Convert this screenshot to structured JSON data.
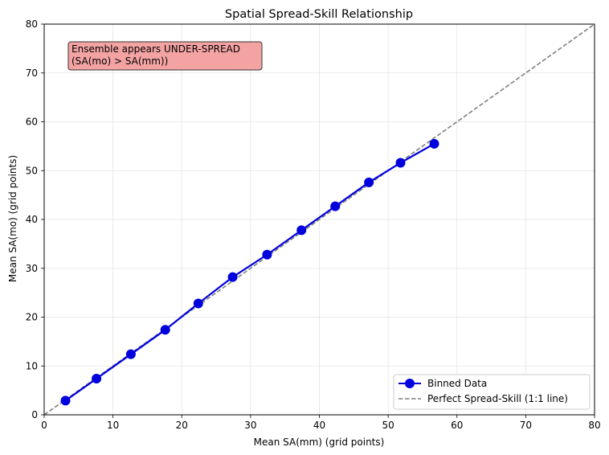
{
  "chart_data": {
    "type": "line",
    "title": "Spatial Spread-Skill Relationship",
    "xlabel": "Mean SA(mm) (grid points)",
    "ylabel": "Mean SA(mo) (grid points)",
    "xlim": [
      0,
      80
    ],
    "ylim": [
      0,
      80
    ],
    "xticks": [
      0,
      10,
      20,
      30,
      40,
      50,
      60,
      70,
      80
    ],
    "yticks": [
      0,
      10,
      20,
      30,
      40,
      50,
      60,
      70,
      80
    ],
    "grid": true,
    "legend_position": "bottom-right",
    "series": [
      {
        "name": "Binned Data",
        "color": "#0000dd",
        "marker": "circle",
        "x": [
          3.1,
          7.6,
          12.6,
          17.6,
          22.4,
          27.4,
          32.4,
          37.4,
          42.3,
          47.2,
          51.8,
          56.7
        ],
        "y": [
          2.9,
          7.4,
          12.4,
          17.4,
          22.8,
          28.2,
          32.8,
          37.8,
          42.7,
          47.6,
          51.6,
          55.5
        ]
      },
      {
        "name": "Perfect Spread-Skill (1:1 line)",
        "color": "#7f7f7f",
        "style": "dashed",
        "x": [
          0,
          80
        ],
        "y": [
          0,
          80
        ]
      }
    ],
    "annotation": {
      "lines": [
        "Ensemble appears UNDER-SPREAD",
        "(SA(mo) > SA(mm))"
      ],
      "background": "#f4a3a3"
    }
  }
}
